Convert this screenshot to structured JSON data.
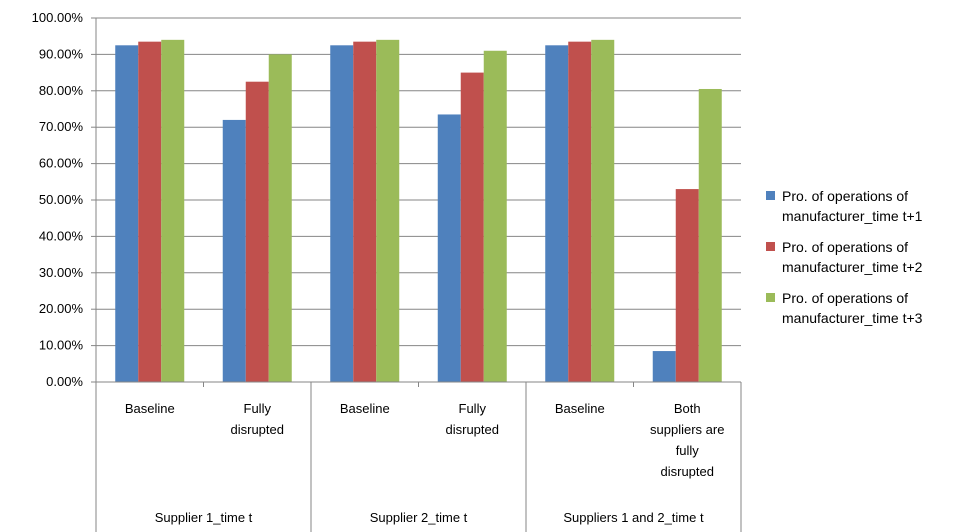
{
  "chart_data": {
    "type": "bar",
    "ylim": [
      0,
      1
    ],
    "yticks": [
      "0.00%",
      "10.00%",
      "20.00%",
      "30.00%",
      "40.00%",
      "50.00%",
      "60.00%",
      "70.00%",
      "80.00%",
      "90.00%",
      "100.00%"
    ],
    "grid": "horizontal",
    "legend_position": "right",
    "groups": [
      {
        "label": "Supplier 1_time t",
        "categories": [
          [
            "Baseline"
          ],
          [
            "Fully",
            "disrupted"
          ]
        ]
      },
      {
        "label": "Supplier 2_time t",
        "categories": [
          [
            "Baseline"
          ],
          [
            "Fully",
            "disrupted"
          ]
        ]
      },
      {
        "label": "Suppliers 1 and 2_time t",
        "categories": [
          [
            "Baseline"
          ],
          [
            "Both",
            "suppliers are",
            "fully",
            "disrupted"
          ]
        ]
      }
    ],
    "series": [
      {
        "name": "Pro. of operations of manufacturer_time t+1",
        "legend_lines": [
          "Pro. of operations of",
          "manufacturer_time t+1"
        ],
        "color": "#4f81bd",
        "values": [
          0.925,
          0.72,
          0.925,
          0.735,
          0.925,
          0.085
        ]
      },
      {
        "name": "Pro. of operations of manufacturer_time t+2",
        "legend_lines": [
          "Pro. of operations of",
          "manufacturer_time t+2"
        ],
        "color": "#c0504d",
        "values": [
          0.935,
          0.825,
          0.935,
          0.85,
          0.935,
          0.53
        ]
      },
      {
        "name": "Pro. of operations of manufacturer_time t+3",
        "legend_lines": [
          "Pro. of operations of",
          "manufacturer_time t+3"
        ],
        "color": "#9bbb59",
        "values": [
          0.94,
          0.9,
          0.94,
          0.91,
          0.94,
          0.805
        ]
      }
    ]
  }
}
